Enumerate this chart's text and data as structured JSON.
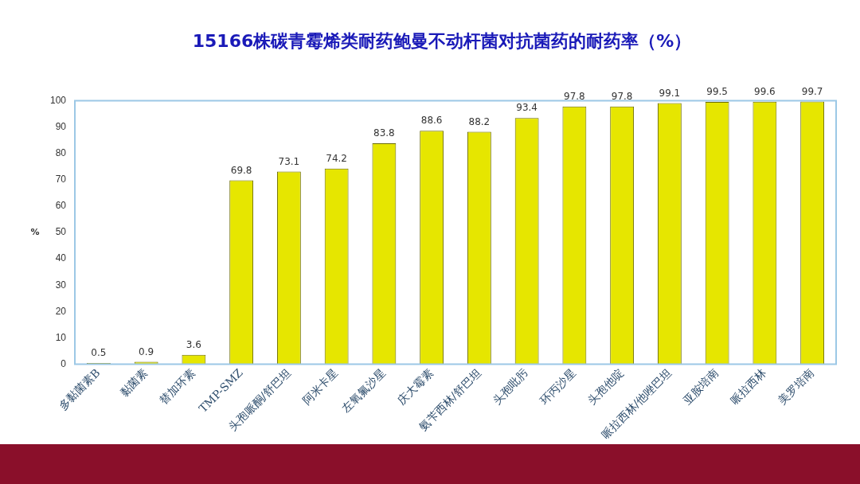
{
  "chart_data": {
    "type": "bar",
    "title": "15166株碳青霉烯类耐药鲍曼不动杆菌对抗菌药的耐药率（%）",
    "ylabel": "%",
    "categories": [
      "多黏菌素B",
      "黏菌素",
      "替加环素",
      "TMP-SMZ",
      "头孢哌酮/舒巴坦",
      "阿米卡星",
      "左氧氟沙星",
      "庆大霉素",
      "氨苄西林/舒巴坦",
      "头孢吡肟",
      "环丙沙星",
      "头孢他啶",
      "哌拉西林/他唑巴坦",
      "亚胺培南",
      "哌拉西林",
      "美罗培南"
    ],
    "values": [
      0.5,
      0.9,
      3.6,
      69.8,
      73.1,
      74.2,
      83.8,
      88.6,
      88.2,
      93.4,
      97.8,
      97.8,
      99.1,
      99.5,
      99.6,
      99.7
    ],
    "color": "#e6e600",
    "ylim": [
      0,
      100
    ],
    "yticks": [
      0,
      10,
      20,
      30,
      40,
      50,
      60,
      70,
      80,
      90,
      100
    ],
    "grid": false,
    "legend": false,
    "data_labels": true
  }
}
